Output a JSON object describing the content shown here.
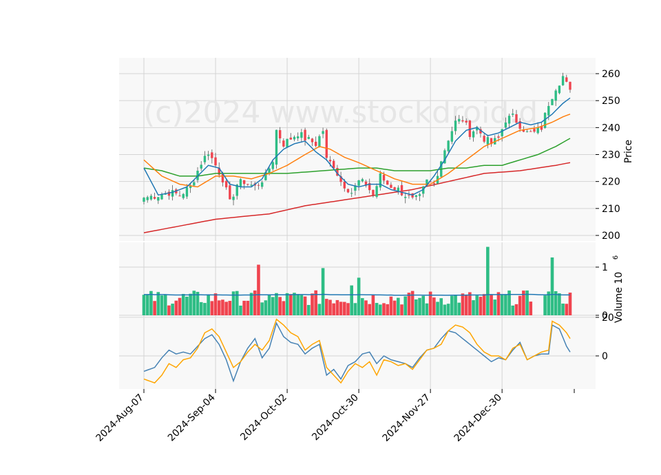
{
  "chart_data": {
    "type": "candlestick",
    "watermark": "(c)2024 www.stockdroid.d",
    "x_tick_labels": [
      "2024-Aug-07",
      "2024-Sep-04",
      "2024-Oct-02",
      "2024-Oct-30",
      "2024-Nov-27",
      "2024-Dec-30"
    ],
    "x_tick_index": [
      0,
      20,
      40,
      60,
      80,
      100
    ],
    "bar_count": 120,
    "price_panel": {
      "ylabel": "Price",
      "ylim": [
        198,
        266
      ],
      "yticks": [
        200,
        210,
        220,
        230,
        240,
        250,
        260
      ],
      "tick_labels": [
        "200",
        "210",
        "220",
        "230",
        "240",
        "250",
        "260"
      ],
      "close_anchors": [
        [
          0,
          214
        ],
        [
          4,
          215
        ],
        [
          7,
          216
        ],
        [
          10,
          215
        ],
        [
          13,
          218
        ],
        [
          16,
          227
        ],
        [
          18,
          231
        ],
        [
          20,
          226
        ],
        [
          22,
          221
        ],
        [
          24,
          212
        ],
        [
          26,
          219
        ],
        [
          28,
          220
        ],
        [
          31,
          218
        ],
        [
          34,
          222
        ],
        [
          36,
          228
        ],
        [
          37,
          239
        ],
        [
          39,
          234
        ],
        [
          41,
          236
        ],
        [
          43,
          238
        ],
        [
          45,
          236
        ],
        [
          48,
          234
        ],
        [
          50,
          239
        ],
        [
          51,
          228
        ],
        [
          53,
          226
        ],
        [
          55,
          220
        ],
        [
          58,
          216
        ],
        [
          60,
          220
        ],
        [
          62,
          219
        ],
        [
          64,
          215
        ],
        [
          66,
          222
        ],
        [
          68,
          219
        ],
        [
          71,
          217
        ],
        [
          73,
          215
        ],
        [
          75,
          213
        ],
        [
          77,
          214
        ],
        [
          79,
          220
        ],
        [
          81,
          219
        ],
        [
          83,
          228
        ],
        [
          85,
          236
        ],
        [
          87,
          242
        ],
        [
          89,
          243
        ],
        [
          91,
          238
        ],
        [
          93,
          240
        ],
        [
          95,
          236
        ],
        [
          97,
          234
        ],
        [
          99,
          236
        ],
        [
          101,
          243
        ],
        [
          103,
          244
        ],
        [
          105,
          241
        ],
        [
          107,
          238
        ],
        [
          109,
          238
        ],
        [
          111,
          240
        ],
        [
          113,
          249
        ],
        [
          115,
          255
        ],
        [
          117,
          259
        ],
        [
          119,
          253
        ]
      ],
      "sma_10_anchors": [
        [
          0,
          225
        ],
        [
          4,
          215
        ],
        [
          8,
          216
        ],
        [
          12,
          218
        ],
        [
          15,
          222
        ],
        [
          18,
          226
        ],
        [
          21,
          225
        ],
        [
          24,
          219
        ],
        [
          27,
          218
        ],
        [
          30,
          218
        ],
        [
          33,
          221
        ],
        [
          36,
          228
        ],
        [
          39,
          232
        ],
        [
          42,
          234
        ],
        [
          45,
          235
        ],
        [
          48,
          231
        ],
        [
          51,
          228
        ],
        [
          54,
          223
        ],
        [
          57,
          219
        ],
        [
          60,
          218
        ],
        [
          63,
          219
        ],
        [
          66,
          219
        ],
        [
          69,
          217
        ],
        [
          72,
          216
        ],
        [
          75,
          215
        ],
        [
          78,
          217
        ],
        [
          81,
          222
        ],
        [
          84,
          228
        ],
        [
          87,
          235
        ],
        [
          90,
          239
        ],
        [
          93,
          240
        ],
        [
          96,
          237
        ],
        [
          99,
          238
        ],
        [
          102,
          240
        ],
        [
          105,
          242
        ],
        [
          108,
          241
        ],
        [
          111,
          242
        ],
        [
          114,
          245
        ],
        [
          117,
          249
        ],
        [
          119,
          251
        ]
      ],
      "sma_20_anchors": [
        [
          0,
          228
        ],
        [
          5,
          222
        ],
        [
          10,
          219
        ],
        [
          15,
          218
        ],
        [
          20,
          222
        ],
        [
          25,
          222
        ],
        [
          30,
          221
        ],
        [
          35,
          223
        ],
        [
          40,
          226
        ],
        [
          45,
          230
        ],
        [
          49,
          233
        ],
        [
          52,
          232
        ],
        [
          56,
          229
        ],
        [
          60,
          227
        ],
        [
          65,
          224
        ],
        [
          70,
          221
        ],
        [
          75,
          219
        ],
        [
          80,
          219
        ],
        [
          85,
          223
        ],
        [
          90,
          228
        ],
        [
          95,
          233
        ],
        [
          100,
          236
        ],
        [
          105,
          239
        ],
        [
          110,
          240
        ],
        [
          114,
          242
        ],
        [
          117,
          244
        ],
        [
          119,
          245
        ]
      ],
      "sma_50_anchors": [
        [
          0,
          225
        ],
        [
          5,
          224
        ],
        [
          10,
          222
        ],
        [
          15,
          222
        ],
        [
          20,
          223
        ],
        [
          30,
          223
        ],
        [
          40,
          223
        ],
        [
          50,
          224
        ],
        [
          60,
          225
        ],
        [
          65,
          225
        ],
        [
          70,
          224
        ],
        [
          75,
          224
        ],
        [
          80,
          224
        ],
        [
          85,
          225
        ],
        [
          90,
          225
        ],
        [
          95,
          226
        ],
        [
          100,
          226
        ],
        [
          105,
          228
        ],
        [
          110,
          230
        ],
        [
          115,
          233
        ],
        [
          119,
          236
        ]
      ],
      "sma_200_anchors": [
        [
          0,
          201
        ],
        [
          20,
          206
        ],
        [
          35,
          208
        ],
        [
          45,
          211
        ],
        [
          55,
          213
        ],
        [
          65,
          215
        ],
        [
          75,
          217
        ],
        [
          85,
          220
        ],
        [
          95,
          223
        ],
        [
          105,
          224
        ],
        [
          115,
          226
        ],
        [
          119,
          227
        ]
      ]
    },
    "volume_panel": {
      "ylabel": "Volume  10^6",
      "ylim": [
        0,
        1.4
      ],
      "yticks": [
        0,
        1
      ],
      "tick_labels": [
        "0",
        "1"
      ],
      "scale_label": "6",
      "spikes": [
        [
          32,
          1.05
        ],
        [
          50,
          0.98
        ],
        [
          58,
          0.62
        ],
        [
          60,
          0.78
        ],
        [
          96,
          1.42
        ],
        [
          114,
          1.2
        ],
        [
          115,
          0.5
        ]
      ]
    },
    "indicator_panel": {
      "ylim": [
        -18,
        22
      ],
      "yticks": [
        0,
        20
      ],
      "tick_labels": [
        "0",
        "20"
      ],
      "orange_anchors": [
        [
          0,
          -12
        ],
        [
          3,
          -14
        ],
        [
          5,
          -10
        ],
        [
          7,
          -4
        ],
        [
          9,
          -6
        ],
        [
          11,
          -2
        ],
        [
          13,
          -1
        ],
        [
          15,
          4
        ],
        [
          17,
          12
        ],
        [
          19,
          14
        ],
        [
          21,
          10
        ],
        [
          23,
          2
        ],
        [
          25,
          -6
        ],
        [
          27,
          -3
        ],
        [
          29,
          2
        ],
        [
          31,
          6
        ],
        [
          33,
          3
        ],
        [
          35,
          8
        ],
        [
          37,
          19
        ],
        [
          39,
          16
        ],
        [
          41,
          12
        ],
        [
          43,
          10
        ],
        [
          45,
          3
        ],
        [
          47,
          6
        ],
        [
          49,
          8
        ],
        [
          51,
          -6
        ],
        [
          53,
          -10
        ],
        [
          55,
          -14
        ],
        [
          57,
          -8
        ],
        [
          59,
          -4
        ],
        [
          61,
          -6
        ],
        [
          63,
          -3
        ],
        [
          65,
          -10
        ],
        [
          67,
          -2
        ],
        [
          69,
          -3
        ],
        [
          71,
          -5
        ],
        [
          73,
          -4
        ],
        [
          75,
          -7
        ],
        [
          77,
          -2
        ],
        [
          79,
          3
        ],
        [
          81,
          4
        ],
        [
          83,
          6
        ],
        [
          85,
          13
        ],
        [
          87,
          16
        ],
        [
          89,
          15
        ],
        [
          91,
          12
        ],
        [
          93,
          6
        ],
        [
          95,
          2
        ],
        [
          97,
          0
        ],
        [
          99,
          0
        ],
        [
          101,
          -2
        ],
        [
          103,
          4
        ],
        [
          105,
          6
        ],
        [
          107,
          -2
        ],
        [
          109,
          0
        ],
        [
          111,
          2
        ],
        [
          113,
          3
        ],
        [
          114,
          18
        ],
        [
          116,
          16
        ],
        [
          118,
          12
        ],
        [
          119,
          9
        ]
      ],
      "blue_anchors": [
        [
          0,
          -8
        ],
        [
          3,
          -6
        ],
        [
          5,
          -1
        ],
        [
          7,
          3
        ],
        [
          9,
          1
        ],
        [
          11,
          2
        ],
        [
          13,
          1
        ],
        [
          15,
          5
        ],
        [
          17,
          9
        ],
        [
          19,
          11
        ],
        [
          21,
          6
        ],
        [
          23,
          -2
        ],
        [
          25,
          -13
        ],
        [
          27,
          -3
        ],
        [
          29,
          4
        ],
        [
          31,
          9
        ],
        [
          33,
          -1
        ],
        [
          35,
          4
        ],
        [
          37,
          17
        ],
        [
          39,
          10
        ],
        [
          41,
          7
        ],
        [
          43,
          6
        ],
        [
          45,
          1
        ],
        [
          47,
          4
        ],
        [
          49,
          6
        ],
        [
          51,
          -10
        ],
        [
          53,
          -7
        ],
        [
          55,
          -12
        ],
        [
          57,
          -5
        ],
        [
          59,
          -3
        ],
        [
          61,
          1
        ],
        [
          63,
          2
        ],
        [
          65,
          -4
        ],
        [
          67,
          0
        ],
        [
          69,
          -2
        ],
        [
          71,
          -3
        ],
        [
          73,
          -4
        ],
        [
          75,
          -6
        ],
        [
          77,
          -1
        ],
        [
          79,
          3
        ],
        [
          81,
          4
        ],
        [
          83,
          9
        ],
        [
          85,
          13
        ],
        [
          87,
          12
        ],
        [
          89,
          9
        ],
        [
          91,
          6
        ],
        [
          93,
          3
        ],
        [
          95,
          0
        ],
        [
          97,
          -3
        ],
        [
          99,
          -1
        ],
        [
          101,
          -2
        ],
        [
          103,
          3
        ],
        [
          105,
          7
        ],
        [
          107,
          -2
        ],
        [
          109,
          0
        ],
        [
          111,
          1
        ],
        [
          113,
          1
        ],
        [
          114,
          16
        ],
        [
          116,
          14
        ],
        [
          118,
          5
        ],
        [
          119,
          2
        ]
      ]
    },
    "colors": {
      "up": "#2ebd85",
      "down": "#f0444f",
      "sma_10": "#1f77b4",
      "sma_20": "#ff7f0e",
      "sma_50": "#2ca02c",
      "sma_200": "#d62728",
      "volume_ma": "#1f77b4",
      "ind_orange": "#ffa500",
      "ind_blue": "#4682b4",
      "panel_bg": "#f8f8f8",
      "grid": "#d4d4d4",
      "watermark": "#e6e6e6"
    }
  }
}
